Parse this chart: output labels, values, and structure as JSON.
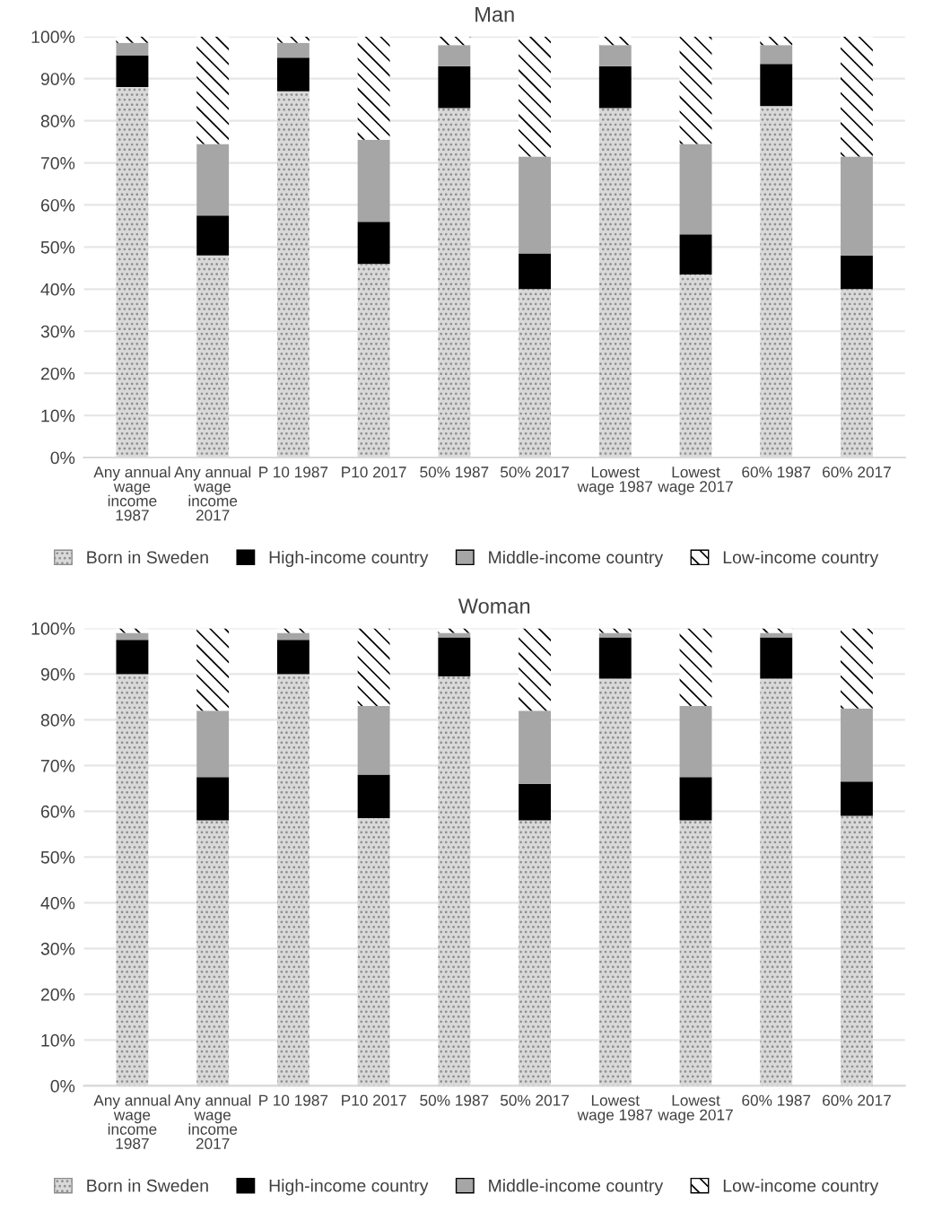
{
  "chart_data": [
    {
      "type": "bar",
      "title": "Man",
      "stacked": true,
      "grid": "y",
      "legend": "bottom",
      "categories": [
        "Any annual wage income 1987",
        "Any annual wage income 2017",
        "P 10 1987",
        "P10 2017",
        "50% 1987",
        "50% 2017",
        "Lowest wage 1987",
        "Lowest wage 2017",
        "60% 1987",
        "60% 2017"
      ],
      "ylim": [
        0,
        100
      ],
      "yticks": [
        {
          "value": 0,
          "label": "0%"
        },
        {
          "value": 10,
          "label": "10%"
        },
        {
          "value": 20,
          "label": "20%"
        },
        {
          "value": 30,
          "label": "30%"
        },
        {
          "value": 40,
          "label": "40%"
        },
        {
          "value": 50,
          "label": "50%"
        },
        {
          "value": 60,
          "label": "60%"
        },
        {
          "value": 70,
          "label": "70%"
        },
        {
          "value": 80,
          "label": "80%"
        },
        {
          "value": 90,
          "label": "90%"
        },
        {
          "value": 100,
          "label": "100%"
        }
      ],
      "series": [
        {
          "name": "Born in Sweden",
          "color": "#d9d9d9",
          "values": [
            88,
            48,
            87,
            46,
            83,
            40,
            83,
            43.5,
            83.5,
            40
          ]
        },
        {
          "name": "High-income country",
          "color": "#000000",
          "values": [
            7.5,
            9.5,
            8,
            10,
            10,
            8.5,
            10,
            9.5,
            10,
            8
          ]
        },
        {
          "name": "Middle-income country",
          "color": "#a6a6a6",
          "values": [
            3,
            17,
            3.5,
            19.5,
            5,
            23,
            5,
            21.5,
            4.5,
            23.5
          ]
        },
        {
          "name": "Low-income country",
          "color": "#ffffff",
          "values": [
            1.5,
            25.5,
            1.5,
            24.5,
            2,
            28.5,
            2,
            25.5,
            2,
            28.5
          ]
        }
      ]
    },
    {
      "type": "bar",
      "title": "Woman",
      "stacked": true,
      "grid": "y",
      "legend": "bottom",
      "categories": [
        "Any annual wage income 1987",
        "Any annual wage income 2017",
        "P 10 1987",
        "P10 2017",
        "50% 1987",
        "50% 2017",
        "Lowest wage 1987",
        "Lowest wage 2017",
        "60% 1987",
        "60% 2017"
      ],
      "ylim": [
        0,
        100
      ],
      "yticks": [
        {
          "value": 0,
          "label": "0%"
        },
        {
          "value": 10,
          "label": "10%"
        },
        {
          "value": 20,
          "label": "20%"
        },
        {
          "value": 30,
          "label": "30%"
        },
        {
          "value": 40,
          "label": "40%"
        },
        {
          "value": 50,
          "label": "50%"
        },
        {
          "value": 60,
          "label": "60%"
        },
        {
          "value": 70,
          "label": "70%"
        },
        {
          "value": 80,
          "label": "80%"
        },
        {
          "value": 90,
          "label": "90%"
        },
        {
          "value": 100,
          "label": "100%"
        }
      ],
      "series": [
        {
          "name": "Born in Sweden",
          "color": "#d9d9d9",
          "values": [
            90,
            58,
            90,
            58.5,
            89.5,
            58,
            89,
            58,
            89,
            59
          ]
        },
        {
          "name": "High-income country",
          "color": "#000000",
          "values": [
            7.5,
            9.5,
            7.5,
            9.5,
            8.5,
            8,
            9,
            9.5,
            9,
            7.5
          ]
        },
        {
          "name": "Middle-income country",
          "color": "#a6a6a6",
          "values": [
            1.5,
            14.5,
            1.5,
            15,
            1,
            16,
            1,
            15.5,
            1,
            16
          ]
        },
        {
          "name": "Low-income country",
          "color": "#ffffff",
          "values": [
            1,
            18,
            1,
            17,
            1,
            18,
            1,
            17,
            1,
            17.5
          ]
        }
      ]
    }
  ]
}
